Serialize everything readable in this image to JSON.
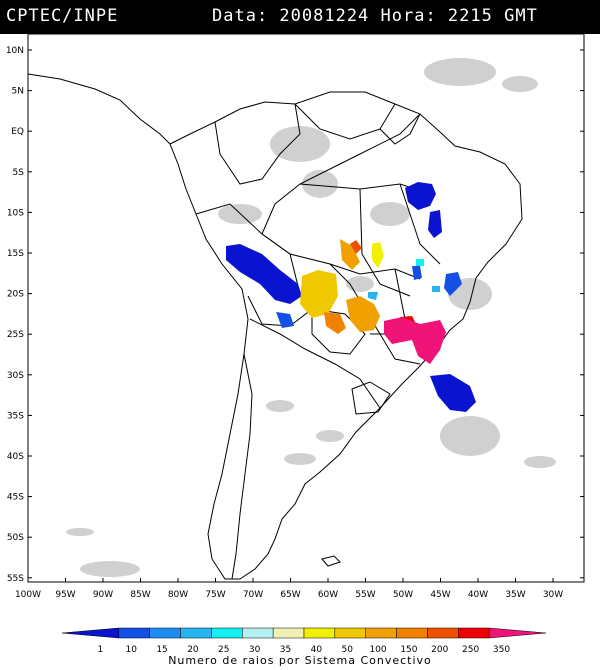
{
  "header": {
    "source": "CPTEC/INPE",
    "stamp": "Data: 20081224 Hora: 2215 GMT"
  },
  "map": {
    "lat_labels": [
      "10N",
      "5N",
      "EQ",
      "5S",
      "10S",
      "15S",
      "20S",
      "25S",
      "30S",
      "35S",
      "40S",
      "45S",
      "50S",
      "55S"
    ],
    "lon_labels": [
      "100W",
      "95W",
      "90W",
      "85W",
      "80W",
      "75W",
      "70W",
      "65W",
      "60W",
      "55W",
      "50W",
      "45W",
      "40W",
      "35W",
      "30W"
    ]
  },
  "legend": {
    "values": [
      "1",
      "10",
      "15",
      "20",
      "25",
      "30",
      "35",
      "40",
      "50",
      "100",
      "150",
      "200",
      "250",
      "350"
    ],
    "colors": [
      "#0a14d0",
      "#1450e6",
      "#1e8cf0",
      "#28b4f0",
      "#14f0f0",
      "#b4f0f0",
      "#f0f0b4",
      "#f0f000",
      "#f0c800",
      "#f0a000",
      "#f08200",
      "#f05000",
      "#f00000",
      "#f01478"
    ],
    "label": "Numero de raios por Sistema Convectivo"
  }
}
